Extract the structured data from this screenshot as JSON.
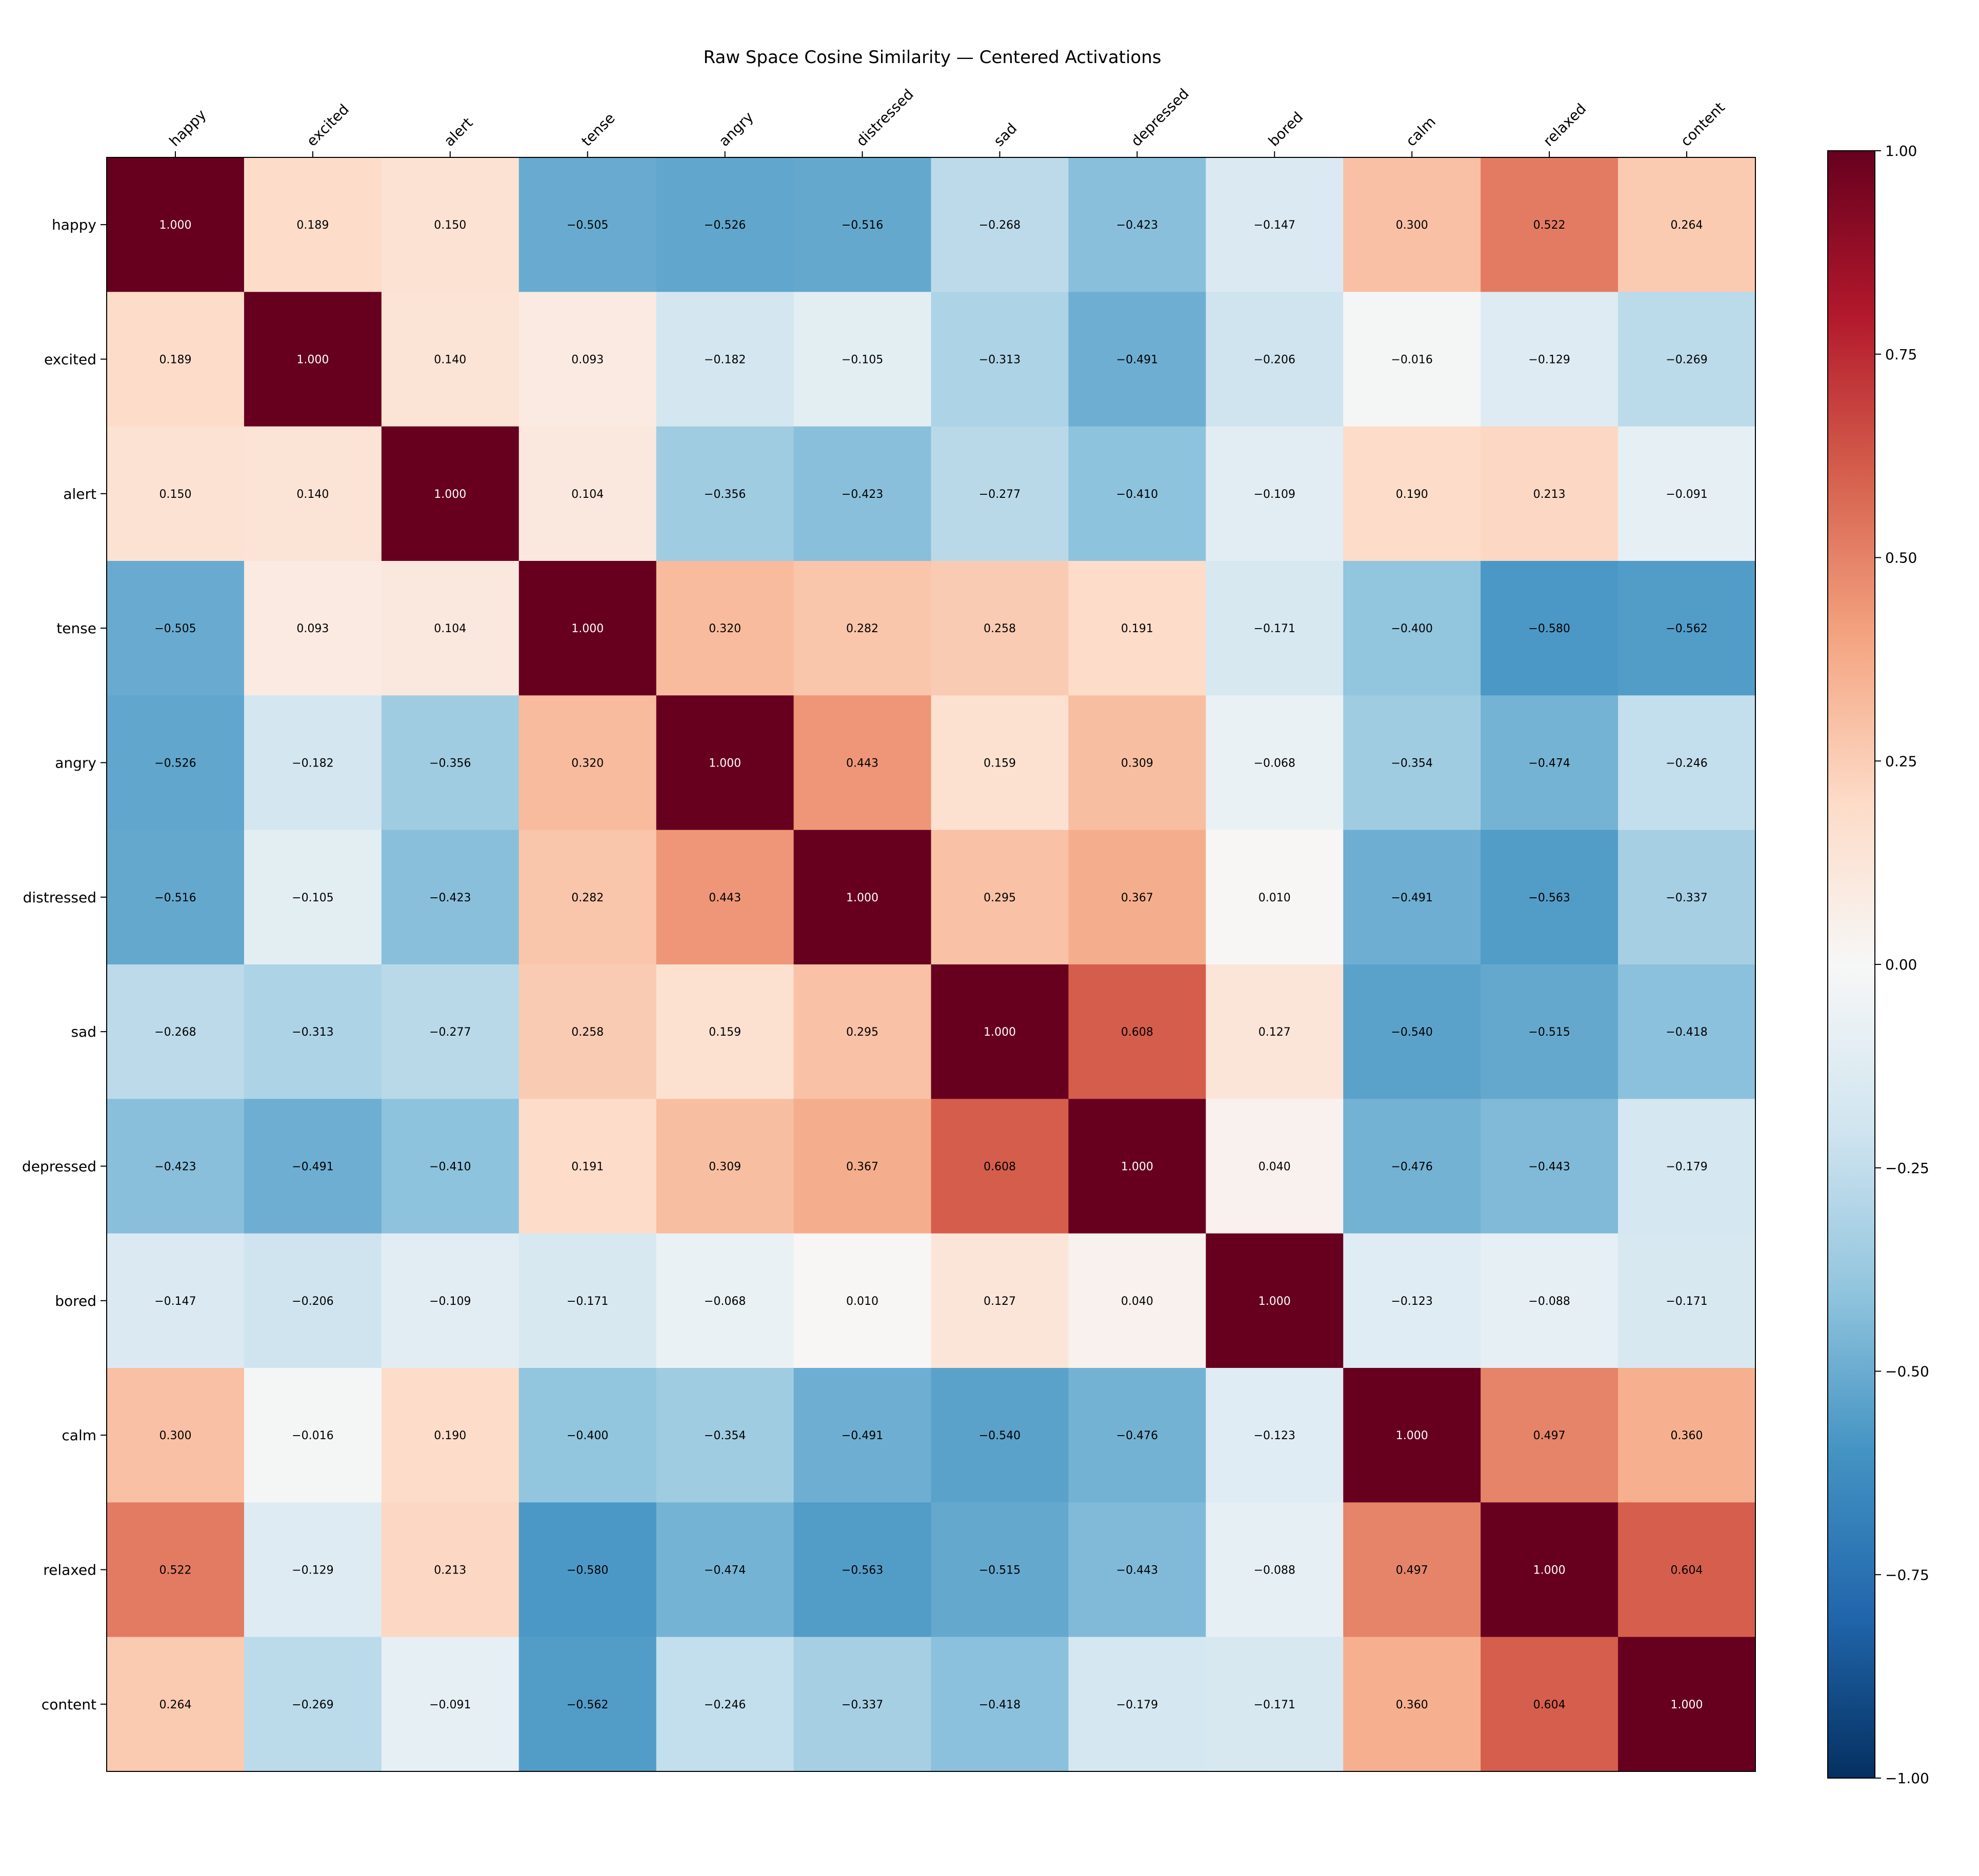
{
  "chart_data": {
    "type": "heatmap",
    "title": "Raw Space Cosine Similarity — Centered Activations",
    "xlabel": "",
    "ylabel": "",
    "labels": [
      "happy",
      "excited",
      "alert",
      "tense",
      "angry",
      "distressed",
      "sad",
      "depressed",
      "bored",
      "calm",
      "relaxed",
      "content"
    ],
    "matrix": [
      [
        1.0,
        0.189,
        0.15,
        -0.505,
        -0.526,
        -0.516,
        -0.268,
        -0.423,
        -0.147,
        0.3,
        0.522,
        0.264
      ],
      [
        0.189,
        1.0,
        0.14,
        0.093,
        -0.182,
        -0.105,
        -0.313,
        -0.491,
        -0.206,
        -0.016,
        -0.129,
        -0.269
      ],
      [
        0.15,
        0.14,
        1.0,
        0.104,
        -0.356,
        -0.423,
        -0.277,
        -0.41,
        -0.109,
        0.19,
        0.213,
        -0.091
      ],
      [
        -0.505,
        0.093,
        0.104,
        1.0,
        0.32,
        0.282,
        0.258,
        0.191,
        -0.171,
        -0.4,
        -0.58,
        -0.562
      ],
      [
        -0.526,
        -0.182,
        -0.356,
        0.32,
        1.0,
        0.443,
        0.159,
        0.309,
        -0.068,
        -0.354,
        -0.474,
        -0.246
      ],
      [
        -0.516,
        -0.105,
        -0.423,
        0.282,
        0.443,
        1.0,
        0.295,
        0.367,
        0.01,
        -0.491,
        -0.563,
        -0.337
      ],
      [
        -0.268,
        -0.313,
        -0.277,
        0.258,
        0.159,
        0.295,
        1.0,
        0.608,
        0.127,
        -0.54,
        -0.515,
        -0.418
      ],
      [
        -0.423,
        -0.491,
        -0.41,
        0.191,
        0.309,
        0.367,
        0.608,
        1.0,
        0.04,
        -0.476,
        -0.443,
        -0.179
      ],
      [
        -0.147,
        -0.206,
        -0.109,
        -0.171,
        -0.068,
        0.01,
        0.127,
        0.04,
        1.0,
        -0.123,
        -0.088,
        -0.171
      ],
      [
        0.3,
        -0.016,
        0.19,
        -0.4,
        -0.354,
        -0.491,
        -0.54,
        -0.476,
        -0.123,
        1.0,
        0.497,
        0.36
      ],
      [
        0.522,
        -0.129,
        0.213,
        -0.58,
        -0.474,
        -0.563,
        -0.515,
        -0.443,
        -0.088,
        0.497,
        1.0,
        0.604
      ],
      [
        0.264,
        -0.269,
        -0.091,
        -0.562,
        -0.246,
        -0.337,
        -0.418,
        -0.179,
        -0.171,
        0.36,
        0.604,
        1.0
      ]
    ],
    "value_format": "3 decimals",
    "colormap": "RdBu_r",
    "vmin": -1.0,
    "vmax": 1.0,
    "colorbar": {
      "ticks": [
        1.0,
        0.75,
        0.5,
        0.25,
        0.0,
        -0.25,
        -0.5,
        -0.75,
        -1.0
      ],
      "tick_labels": [
        "1.00",
        "0.75",
        "0.50",
        "0.25",
        "0.00",
        "−0.25",
        "−0.50",
        "−0.75",
        "−1.00"
      ]
    },
    "grid": false,
    "x_tick_position": "top",
    "legend": "colorbar right"
  }
}
